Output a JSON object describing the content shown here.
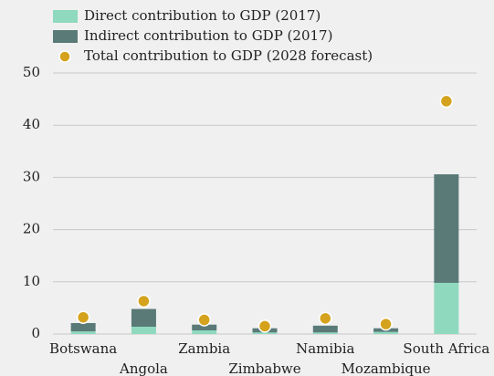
{
  "chart_data": {
    "type": "bar",
    "stacked": true,
    "categories": [
      "Botswana",
      "Angola",
      "Zambia",
      "Zimbabwe",
      "Namibia",
      "Mozambique",
      "South Africa"
    ],
    "series": [
      {
        "name": "Direct contribution to GDP (2017)",
        "color": "#8fd9bf",
        "values": [
          0.5,
          1.4,
          0.7,
          0.3,
          0.3,
          0.4,
          9.8
        ]
      },
      {
        "name": "Indirect contribution to GDP (2017)",
        "color": "#5a7a78",
        "values": [
          1.6,
          3.4,
          1.1,
          0.8,
          1.3,
          0.7,
          20.8
        ]
      },
      {
        "name": "Total contribution to GDP (2028 forecast)",
        "color": "#d4a21c",
        "type": "scatter",
        "values": [
          3.2,
          6.3,
          2.7,
          1.5,
          3.0,
          1.9,
          44.6
        ]
      }
    ],
    "ylim": [
      0,
      50
    ],
    "yticks": [
      0,
      10,
      20,
      30,
      40,
      50
    ],
    "grid": true
  }
}
